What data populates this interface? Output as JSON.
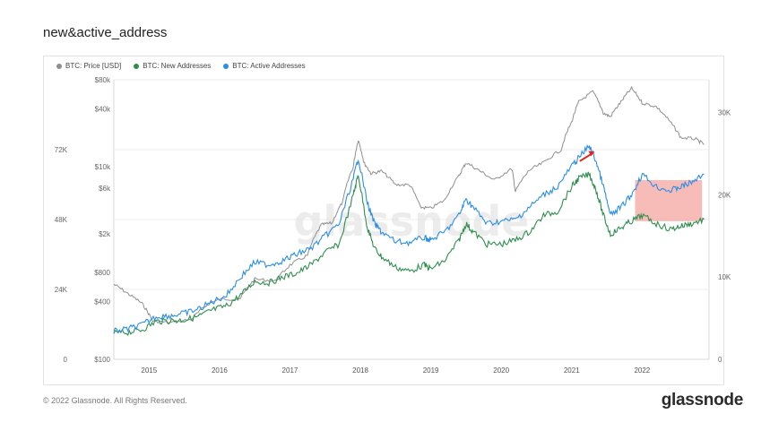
{
  "page": {
    "title": "new&active_address",
    "copyright": "© 2022 Glassnode. All Rights Reserved.",
    "brand": "glassnode",
    "watermark": "glassnode"
  },
  "colors": {
    "price": "#8f8f8f",
    "new_addresses": "#2f8e4e",
    "active_addresses": "#2b8ee6",
    "highlight_box": "#f4a6a0",
    "arrow": "#e0231b",
    "grid": "#ececec"
  },
  "chart_data": {
    "type": "line",
    "title": "new&active_address",
    "legend_position": "top-left",
    "grid": true,
    "x_ticks": [
      "2015",
      "2016",
      "2017",
      "2018",
      "2019",
      "2020",
      "2021",
      "2022"
    ],
    "x_range": [
      2014.5,
      2022.95
    ],
    "y_left_outer": {
      "ticks": [
        "0",
        "24K",
        "48K",
        "72K"
      ],
      "range": [
        0,
        96000
      ]
    },
    "y_left_inner": {
      "ticks": [
        "$100",
        "$400",
        "$800",
        "$2k",
        "$6k",
        "$10k",
        "$40k",
        "$80k"
      ],
      "scale": "log",
      "range": [
        100,
        80000
      ]
    },
    "y_right": {
      "ticks": [
        "0",
        "10K",
        "20K",
        "30K"
      ],
      "range": [
        0,
        34000
      ]
    },
    "annotations": [
      {
        "type": "arrow",
        "x": 2021.25,
        "color": "red"
      },
      {
        "type": "highlight-box",
        "x_range": [
          2021.9,
          2022.85
        ],
        "color": "pink"
      }
    ],
    "series": [
      {
        "name": "BTC: Price [USD]",
        "axis": "y_left_inner",
        "points": [
          [
            2014.5,
            600
          ],
          [
            2014.7,
            480
          ],
          [
            2014.9,
            380
          ],
          [
            2015.05,
            250
          ],
          [
            2015.3,
            240
          ],
          [
            2015.6,
            260
          ],
          [
            2015.85,
            380
          ],
          [
            2016.0,
            420
          ],
          [
            2016.3,
            430
          ],
          [
            2016.5,
            680
          ],
          [
            2016.8,
            650
          ],
          [
            2017.0,
            950
          ],
          [
            2017.25,
            1200
          ],
          [
            2017.45,
            2500
          ],
          [
            2017.6,
            2600
          ],
          [
            2017.75,
            4300
          ],
          [
            2017.9,
            10000
          ],
          [
            2017.97,
            19000
          ],
          [
            2018.05,
            11000
          ],
          [
            2018.15,
            8500
          ],
          [
            2018.3,
            9000
          ],
          [
            2018.5,
            6500
          ],
          [
            2018.7,
            6500
          ],
          [
            2018.85,
            3800
          ],
          [
            2019.0,
            3700
          ],
          [
            2019.2,
            4500
          ],
          [
            2019.4,
            8000
          ],
          [
            2019.5,
            11000
          ],
          [
            2019.7,
            9000
          ],
          [
            2019.9,
            7200
          ],
          [
            2020.15,
            9500
          ],
          [
            2020.2,
            5500
          ],
          [
            2020.4,
            9200
          ],
          [
            2020.6,
            11000
          ],
          [
            2020.85,
            15000
          ],
          [
            2021.0,
            29000
          ],
          [
            2021.1,
            47000
          ],
          [
            2021.3,
            60000
          ],
          [
            2021.45,
            36000
          ],
          [
            2021.55,
            33000
          ],
          [
            2021.7,
            47000
          ],
          [
            2021.85,
            65000
          ],
          [
            2022.0,
            46000
          ],
          [
            2022.2,
            42000
          ],
          [
            2022.4,
            29000
          ],
          [
            2022.55,
            20000
          ],
          [
            2022.75,
            19500
          ],
          [
            2022.88,
            17000
          ]
        ]
      },
      {
        "name": "BTC: New Addresses",
        "axis": "y_right",
        "points": [
          [
            2014.5,
            3200
          ],
          [
            2014.7,
            3300
          ],
          [
            2014.9,
            3600
          ],
          [
            2015.1,
            4600
          ],
          [
            2015.3,
            4700
          ],
          [
            2015.5,
            4800
          ],
          [
            2015.7,
            5200
          ],
          [
            2015.9,
            6000
          ],
          [
            2016.1,
            6500
          ],
          [
            2016.3,
            7800
          ],
          [
            2016.5,
            9500
          ],
          [
            2016.7,
            9300
          ],
          [
            2016.9,
            10000
          ],
          [
            2017.1,
            10500
          ],
          [
            2017.3,
            11500
          ],
          [
            2017.5,
            13000
          ],
          [
            2017.7,
            14000
          ],
          [
            2017.9,
            20000
          ],
          [
            2017.97,
            22500
          ],
          [
            2018.1,
            16000
          ],
          [
            2018.2,
            13500
          ],
          [
            2018.3,
            12500
          ],
          [
            2018.5,
            11200
          ],
          [
            2018.7,
            10700
          ],
          [
            2018.9,
            11500
          ],
          [
            2019.0,
            11000
          ],
          [
            2019.2,
            12000
          ],
          [
            2019.4,
            14500
          ],
          [
            2019.5,
            16500
          ],
          [
            2019.6,
            15500
          ],
          [
            2019.8,
            14000
          ],
          [
            2020.0,
            14000
          ],
          [
            2020.2,
            14500
          ],
          [
            2020.4,
            15500
          ],
          [
            2020.6,
            17500
          ],
          [
            2020.8,
            18000
          ],
          [
            2021.0,
            21000
          ],
          [
            2021.1,
            22000
          ],
          [
            2021.25,
            22500
          ],
          [
            2021.35,
            20500
          ],
          [
            2021.45,
            17500
          ],
          [
            2021.55,
            15200
          ],
          [
            2021.7,
            16000
          ],
          [
            2021.85,
            16800
          ],
          [
            2022.0,
            17500
          ],
          [
            2022.2,
            16500
          ],
          [
            2022.4,
            15800
          ],
          [
            2022.55,
            16200
          ],
          [
            2022.7,
            16500
          ],
          [
            2022.88,
            17000
          ]
        ]
      },
      {
        "name": "BTC: Active Addresses",
        "axis": "y_right",
        "points": [
          [
            2014.5,
            3400
          ],
          [
            2014.7,
            3700
          ],
          [
            2014.9,
            4200
          ],
          [
            2015.1,
            5200
          ],
          [
            2015.3,
            5300
          ],
          [
            2015.5,
            5600
          ],
          [
            2015.7,
            6100
          ],
          [
            2015.9,
            7000
          ],
          [
            2016.1,
            7800
          ],
          [
            2016.3,
            10000
          ],
          [
            2016.5,
            11800
          ],
          [
            2016.7,
            11500
          ],
          [
            2016.9,
            12000
          ],
          [
            2017.1,
            12800
          ],
          [
            2017.3,
            13500
          ],
          [
            2017.5,
            15000
          ],
          [
            2017.7,
            16500
          ],
          [
            2017.9,
            22000
          ],
          [
            2017.97,
            24500
          ],
          [
            2018.1,
            19000
          ],
          [
            2018.2,
            16500
          ],
          [
            2018.3,
            15500
          ],
          [
            2018.5,
            14300
          ],
          [
            2018.7,
            14200
          ],
          [
            2018.9,
            14800
          ],
          [
            2019.0,
            14500
          ],
          [
            2019.2,
            15500
          ],
          [
            2019.4,
            17500
          ],
          [
            2019.5,
            19500
          ],
          [
            2019.6,
            18500
          ],
          [
            2019.8,
            16500
          ],
          [
            2020.0,
            16800
          ],
          [
            2020.2,
            17000
          ],
          [
            2020.4,
            18500
          ],
          [
            2020.6,
            20000
          ],
          [
            2020.8,
            21000
          ],
          [
            2021.0,
            23500
          ],
          [
            2021.1,
            24500
          ],
          [
            2021.25,
            26000
          ],
          [
            2021.35,
            24000
          ],
          [
            2021.45,
            21000
          ],
          [
            2021.55,
            17500
          ],
          [
            2021.7,
            18500
          ],
          [
            2021.85,
            20000
          ],
          [
            2022.0,
            22500
          ],
          [
            2022.2,
            21000
          ],
          [
            2022.4,
            20500
          ],
          [
            2022.55,
            21000
          ],
          [
            2022.7,
            21500
          ],
          [
            2022.88,
            22500
          ]
        ]
      }
    ]
  }
}
